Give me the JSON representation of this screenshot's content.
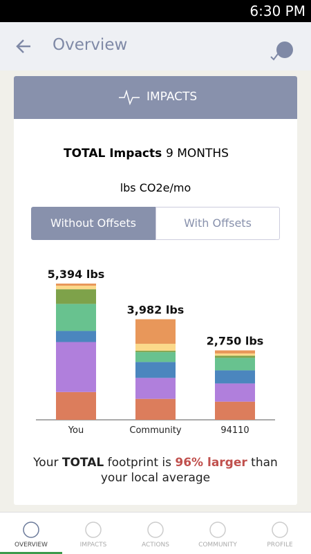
{
  "status_bar": {
    "time": "6:30 PM"
  },
  "header": {
    "title": "Overview"
  },
  "card": {
    "title": "IMPACTS",
    "summary_label": "TOTAL Impacts",
    "period": "9 MONTHS",
    "unit": "lbs CO2e/mo",
    "toggle": [
      "Without Offsets",
      "With Offsets"
    ],
    "footer": [
      "Your ",
      "TOTAL",
      " footprint is ",
      "96% larger",
      " than your local average"
    ]
  },
  "chart_data": {
    "type": "bar",
    "stacked": true,
    "categories": [
      "You",
      "Community",
      "94110"
    ],
    "series": [
      {
        "color": "#dc7d5c",
        "values": [
          1100,
          830,
          720
        ]
      },
      {
        "color": "#b07fdc",
        "values": [
          1980,
          830,
          720
        ]
      },
      {
        "color": "#4b86be",
        "values": [
          440,
          630,
          520
        ]
      },
      {
        "color": "#68c28f",
        "values": [
          1070,
          390,
          495
        ]
      },
      {
        "color": "#7ea24a",
        "values": [
          580,
          55,
          85
        ]
      },
      {
        "color": "#fbd98a",
        "values": [
          140,
          275,
          85
        ]
      },
      {
        "color": "#e8975a",
        "values": [
          84,
          972,
          125
        ]
      }
    ],
    "total_labels": [
      "5,394 lbs",
      "3,982 lbs",
      "2,750 lbs"
    ]
  },
  "nav": {
    "tabs": [
      "OVERVIEW",
      "IMPACTS",
      "ACTIONS",
      "COMMUNITY",
      "PROFILE"
    ]
  }
}
